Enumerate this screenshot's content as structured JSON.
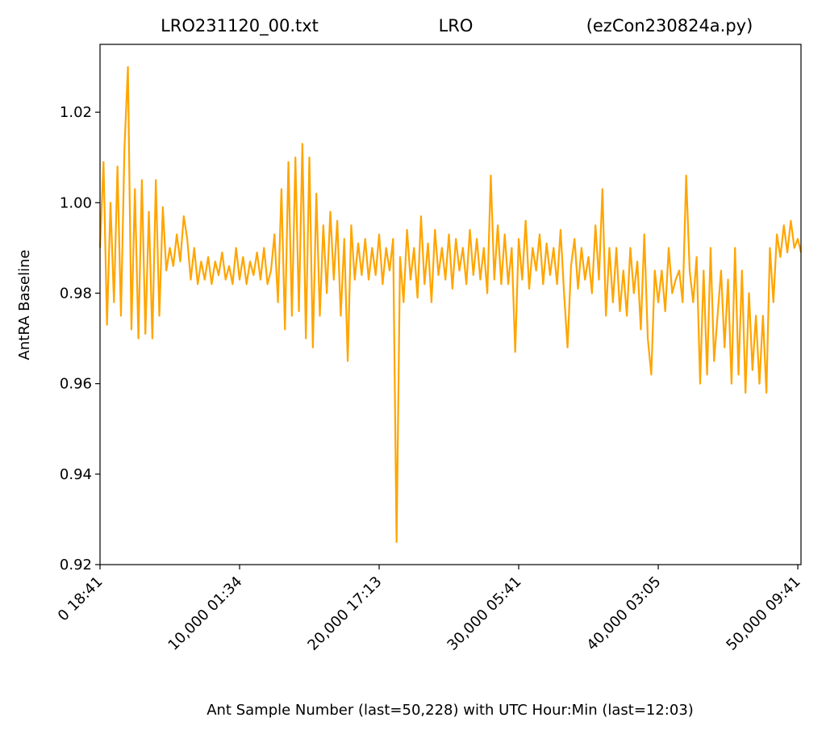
{
  "chart_data": {
    "type": "line",
    "title_left": "LRO231120_00.txt",
    "title": "LRO",
    "title_right": "(ezCon230824a.py)",
    "xlabel": "Ant Sample Number (last=50,228) with UTC Hour:Min (last=12:03)",
    "ylabel": "AntRA Baseline",
    "x": [
      0,
      250,
      500,
      750,
      1000,
      1250,
      1500,
      1750,
      2000,
      2250,
      2500,
      2750,
      3000,
      3250,
      3500,
      3750,
      4000,
      4250,
      4500,
      4750,
      5000,
      5250,
      5500,
      5750,
      6000,
      6250,
      6500,
      6750,
      7000,
      7250,
      7500,
      7750,
      8000,
      8250,
      8500,
      8750,
      9000,
      9250,
      9500,
      9750,
      10000,
      10250,
      10500,
      10750,
      11000,
      11250,
      11500,
      11750,
      12000,
      12250,
      12500,
      12750,
      13000,
      13250,
      13500,
      13750,
      14000,
      14250,
      14500,
      14750,
      15000,
      15250,
      15500,
      15750,
      16000,
      16250,
      16500,
      16750,
      17000,
      17250,
      17500,
      17750,
      18000,
      18250,
      18500,
      18750,
      19000,
      19250,
      19500,
      19750,
      20000,
      20250,
      20500,
      20750,
      21000,
      21250,
      21500,
      21750,
      22000,
      22250,
      22500,
      22750,
      23000,
      23250,
      23500,
      23750,
      24000,
      24250,
      24500,
      24750,
      25000,
      25250,
      25500,
      25750,
      26000,
      26250,
      26500,
      26750,
      27000,
      27250,
      27500,
      27750,
      28000,
      28250,
      28500,
      28750,
      29000,
      29250,
      29500,
      29750,
      30000,
      30250,
      30500,
      30750,
      31000,
      31250,
      31500,
      31750,
      32000,
      32250,
      32500,
      32750,
      33000,
      33250,
      33500,
      33750,
      34000,
      34250,
      34500,
      34750,
      35000,
      35250,
      35500,
      35750,
      36000,
      36250,
      36500,
      36750,
      37000,
      37250,
      37500,
      37750,
      38000,
      38250,
      38500,
      38750,
      39000,
      39250,
      39500,
      39750,
      40000,
      40250,
      40500,
      40750,
      41000,
      41250,
      41500,
      41750,
      42000,
      42250,
      42500,
      42750,
      43000,
      43250,
      43500,
      43750,
      44000,
      44250,
      44500,
      44750,
      45000,
      45250,
      45500,
      45750,
      46000,
      46250,
      46500,
      46750,
      47000,
      47250,
      47500,
      47750,
      48000,
      48250,
      48500,
      48750,
      49000,
      49250,
      49500,
      49750,
      50000,
      50228
    ],
    "series": [
      {
        "color": "#ffa500",
        "values": [
          0.99,
          1.009,
          0.973,
          1.0,
          0.978,
          1.008,
          0.975,
          1.012,
          1.03,
          0.972,
          1.003,
          0.97,
          1.005,
          0.971,
          0.998,
          0.97,
          1.005,
          0.975,
          0.999,
          0.985,
          0.99,
          0.986,
          0.993,
          0.987,
          0.997,
          0.992,
          0.983,
          0.99,
          0.982,
          0.987,
          0.983,
          0.988,
          0.982,
          0.987,
          0.984,
          0.989,
          0.983,
          0.986,
          0.982,
          0.99,
          0.983,
          0.988,
          0.982,
          0.987,
          0.984,
          0.989,
          0.983,
          0.99,
          0.982,
          0.985,
          0.993,
          0.978,
          1.003,
          0.972,
          1.009,
          0.975,
          1.01,
          0.976,
          1.013,
          0.97,
          1.01,
          0.968,
          1.002,
          0.975,
          0.995,
          0.98,
          0.998,
          0.983,
          0.996,
          0.975,
          0.992,
          0.965,
          0.995,
          0.983,
          0.991,
          0.984,
          0.992,
          0.983,
          0.99,
          0.984,
          0.993,
          0.982,
          0.99,
          0.985,
          0.992,
          0.925,
          0.988,
          0.978,
          0.994,
          0.983,
          0.99,
          0.979,
          0.997,
          0.982,
          0.991,
          0.978,
          0.994,
          0.984,
          0.99,
          0.983,
          0.993,
          0.981,
          0.992,
          0.985,
          0.99,
          0.982,
          0.994,
          0.984,
          0.992,
          0.983,
          0.99,
          0.98,
          1.006,
          0.983,
          0.995,
          0.982,
          0.993,
          0.982,
          0.99,
          0.967,
          0.992,
          0.983,
          0.996,
          0.981,
          0.99,
          0.985,
          0.993,
          0.982,
          0.991,
          0.984,
          0.99,
          0.982,
          0.994,
          0.98,
          0.968,
          0.986,
          0.992,
          0.981,
          0.99,
          0.983,
          0.988,
          0.98,
          0.995,
          0.983,
          1.003,
          0.975,
          0.99,
          0.978,
          0.99,
          0.976,
          0.985,
          0.975,
          0.99,
          0.98,
          0.987,
          0.972,
          0.993,
          0.97,
          0.962,
          0.985,
          0.978,
          0.985,
          0.976,
          0.99,
          0.98,
          0.983,
          0.985,
          0.978,
          1.006,
          0.985,
          0.978,
          0.988,
          0.96,
          0.985,
          0.962,
          0.99,
          0.965,
          0.975,
          0.985,
          0.968,
          0.983,
          0.96,
          0.99,
          0.962,
          0.985,
          0.958,
          0.98,
          0.963,
          0.975,
          0.96,
          0.975,
          0.958,
          0.99,
          0.978,
          0.993,
          0.988,
          0.995,
          0.989,
          0.996,
          0.99,
          0.992,
          0.989
        ]
      }
    ],
    "xlim": [
      0,
      50228
    ],
    "ylim": [
      0.92,
      1.035
    ],
    "xticks": [
      {
        "value": 0,
        "label": "0  18:41"
      },
      {
        "value": 10000,
        "label": "10,000  01:34"
      },
      {
        "value": 20000,
        "label": "20,000  17:13"
      },
      {
        "value": 30000,
        "label": "30,000  05:41"
      },
      {
        "value": 40000,
        "label": "40,000  03:05"
      },
      {
        "value": 50000,
        "label": "50,000  09:41"
      }
    ],
    "yticks": [
      0.92,
      0.94,
      0.96,
      0.98,
      {
        "value": 1.0,
        "label": "1.00"
      },
      1.02
    ],
    "grid": false
  }
}
